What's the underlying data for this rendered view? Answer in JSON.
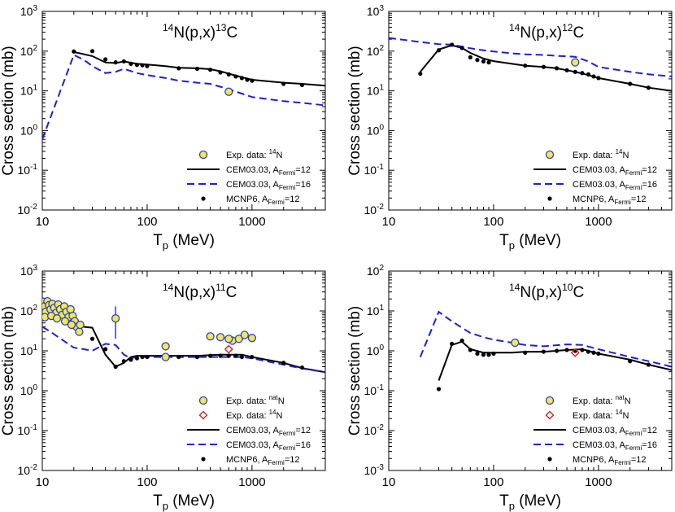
{
  "chart_data": [
    {
      "type": "line",
      "title_pre": "14",
      "title_mid": "N(p,x)",
      "title_sup2": "13",
      "title_post": "C",
      "xlabel_main": "T",
      "xlabel_sub": "p",
      "xlabel_unit": " (MeV)",
      "ylabel": "Cross section (mb)",
      "xscale": "log",
      "yscale": "log",
      "xlim": [
        10,
        5000
      ],
      "ylim": [
        0.01,
        1000
      ],
      "x_ticks": [
        {
          "v": 10,
          "label": "10"
        },
        {
          "v": 100,
          "label": "100"
        },
        {
          "v": 1000,
          "label": "1000"
        }
      ],
      "y_ticks": [
        {
          "v": 0.01,
          "base": "10",
          "exp": "-2"
        },
        {
          "v": 0.1,
          "base": "10",
          "exp": "-1"
        },
        {
          "v": 1,
          "base": "10",
          "exp": "0"
        },
        {
          "v": 10,
          "base": "10",
          "exp": "1"
        },
        {
          "v": 100,
          "base": "10",
          "exp": "2"
        },
        {
          "v": 1000,
          "base": "10",
          "exp": "3"
        }
      ],
      "legend_position": "bottom-right",
      "series": [
        {
          "name": "CEM03.03, A_Fermi=12",
          "kind": "solid",
          "x": [
            20,
            30,
            40,
            50,
            60,
            80,
            100,
            150,
            200,
            300,
            400,
            500,
            600,
            800,
            1000,
            2000,
            3000,
            5000
          ],
          "y": [
            95,
            75,
            52,
            50,
            55,
            48,
            46,
            42,
            38,
            37,
            35,
            31,
            27,
            22,
            19,
            16,
            15,
            13.5
          ]
        },
        {
          "name": "CEM03.03, A_Fermi=16",
          "kind": "dashed",
          "x": [
            10,
            20,
            25,
            30,
            40,
            50,
            60,
            80,
            100,
            150,
            200,
            300,
            400,
            600,
            800,
            1000,
            2000,
            3000,
            5000
          ],
          "y": [
            0.6,
            80,
            60,
            42,
            28,
            30,
            36,
            28,
            25,
            21,
            18,
            16,
            15,
            11,
            8.5,
            7,
            5.5,
            5,
            4.3
          ]
        },
        {
          "name": "MCNP6, A_Fermi=12",
          "kind": "dots",
          "x": [
            20,
            30,
            40,
            50,
            60,
            70,
            80,
            90,
            100,
            200,
            300,
            400,
            500,
            600,
            700,
            800,
            900,
            1000,
            2000,
            3000
          ],
          "y": [
            98,
            100,
            62,
            52,
            55,
            48,
            45,
            44,
            42,
            37,
            36,
            34,
            29,
            26,
            23,
            21,
            19,
            18,
            15,
            14
          ]
        }
      ],
      "exp": [
        {
          "x": 600,
          "y": 9.5
        }
      ],
      "legend": [
        {
          "kind": "circle",
          "text": "Exp. data: ",
          "sup": "14",
          "post": "N"
        },
        {
          "kind": "solid",
          "text": "CEM03.03, A",
          "sub": "Fermi",
          "post": "=12"
        },
        {
          "kind": "dashed",
          "text": "CEM03.03, A",
          "sub": "Fermi",
          "post": "=16"
        },
        {
          "kind": "dot",
          "text": "MCNP6, A",
          "sub": "Fermi",
          "post": "=12"
        }
      ]
    },
    {
      "type": "line",
      "title_pre": "14",
      "title_mid": "N(p,x)",
      "title_sup2": "12",
      "title_post": "C",
      "xlabel_main": "T",
      "xlabel_sub": "p",
      "xlabel_unit": " (MeV)",
      "ylabel": "Cross section (mb)",
      "xscale": "log",
      "yscale": "log",
      "xlim": [
        10,
        5000
      ],
      "ylim": [
        0.01,
        1000
      ],
      "x_ticks": [
        {
          "v": 10,
          "label": "10"
        },
        {
          "v": 100,
          "label": "100"
        },
        {
          "v": 1000,
          "label": "1000"
        }
      ],
      "y_ticks": [
        {
          "v": 0.01,
          "base": "10",
          "exp": "-2"
        },
        {
          "v": 0.1,
          "base": "10",
          "exp": "-1"
        },
        {
          "v": 1,
          "base": "10",
          "exp": "0"
        },
        {
          "v": 10,
          "base": "10",
          "exp": "1"
        },
        {
          "v": 100,
          "base": "10",
          "exp": "2"
        },
        {
          "v": 1000,
          "base": "10",
          "exp": "3"
        }
      ],
      "legend_position": "bottom-right",
      "series": [
        {
          "name": "CEM03.03, A_Fermi=12",
          "kind": "solid",
          "x": [
            20,
            30,
            40,
            50,
            60,
            80,
            100,
            150,
            200,
            300,
            400,
            500,
            600,
            800,
            1000,
            2000,
            3000,
            5000
          ],
          "y": [
            30,
            110,
            140,
            120,
            90,
            65,
            56,
            48,
            43,
            40,
            37,
            33,
            30,
            25,
            21,
            15,
            12,
            10
          ]
        },
        {
          "name": "CEM03.03, A_Fermi=16",
          "kind": "dashed",
          "x": [
            10,
            20,
            30,
            40,
            50,
            60,
            80,
            100,
            150,
            200,
            300,
            400,
            500,
            600,
            800,
            1000,
            2000,
            3000,
            5000
          ],
          "y": [
            215,
            170,
            150,
            145,
            130,
            118,
            105,
            98,
            88,
            83,
            80,
            76,
            74,
            72,
            55,
            40,
            30,
            26,
            23
          ]
        },
        {
          "name": "MCNP6, A_Fermi=12",
          "kind": "dots",
          "x": [
            20,
            30,
            40,
            50,
            60,
            70,
            80,
            90,
            200,
            300,
            400,
            500,
            600,
            700,
            800,
            900,
            1000,
            2000,
            3000
          ],
          "y": [
            27,
            105,
            145,
            120,
            70,
            60,
            55,
            52,
            43,
            40,
            37,
            33,
            30,
            28,
            26,
            23,
            21,
            15,
            12
          ]
        }
      ],
      "exp": [
        {
          "x": 600,
          "y": 52
        }
      ],
      "legend": [
        {
          "kind": "circle",
          "text": "Exp. data: ",
          "sup": "14",
          "post": "N"
        },
        {
          "kind": "solid",
          "text": "CEM03.03, A",
          "sub": "Fermi",
          "post": "=12"
        },
        {
          "kind": "dashed",
          "text": "CEM03.03, A",
          "sub": "Fermi",
          "post": "=16"
        },
        {
          "kind": "dot",
          "text": "MCNP6, A",
          "sub": "Fermi",
          "post": "=12"
        }
      ]
    },
    {
      "type": "line",
      "title_pre": "14",
      "title_mid": "N(p,x)",
      "title_sup2": "11",
      "title_post": "C",
      "xlabel_main": "T",
      "xlabel_sub": "p",
      "xlabel_unit": " (MeV)",
      "ylabel": "Cross section (mb)",
      "xscale": "log",
      "yscale": "log",
      "xlim": [
        10,
        5000
      ],
      "ylim": [
        0.01,
        1000
      ],
      "x_ticks": [
        {
          "v": 10,
          "label": "10"
        },
        {
          "v": 100,
          "label": "100"
        },
        {
          "v": 1000,
          "label": "1000"
        }
      ],
      "y_ticks": [
        {
          "v": 0.01,
          "base": "10",
          "exp": "-2"
        },
        {
          "v": 0.1,
          "base": "10",
          "exp": "-1"
        },
        {
          "v": 1,
          "base": "10",
          "exp": "0"
        },
        {
          "v": 10,
          "base": "10",
          "exp": "1"
        },
        {
          "v": 100,
          "base": "10",
          "exp": "2"
        },
        {
          "v": 1000,
          "base": "10",
          "exp": "3"
        }
      ],
      "legend_position": "bottom-right",
      "series": [
        {
          "name": "CEM03.03, A_Fermi=12",
          "kind": "solid",
          "x": [
            10,
            12,
            15,
            20,
            25,
            30,
            40,
            50,
            60,
            70,
            80,
            100,
            150,
            200,
            300,
            500,
            800,
            1000,
            2000,
            3000,
            5000
          ],
          "y": [
            95,
            110,
            95,
            60,
            40,
            38,
            8,
            4,
            5,
            7,
            7.5,
            7.5,
            7.5,
            7.5,
            7.5,
            8,
            8,
            7,
            5,
            3.7,
            2.9
          ]
        },
        {
          "name": "CEM03.03, A_Fermi=16",
          "kind": "dashed",
          "x": [
            10,
            12,
            15,
            20,
            25,
            30,
            40,
            50,
            60,
            70,
            80,
            100,
            150,
            200,
            300,
            500,
            800,
            1000,
            2000,
            3000,
            5000
          ],
          "y": [
            40,
            30,
            20,
            12,
            11,
            10,
            15,
            14,
            8,
            6.5,
            7,
            7,
            7,
            7,
            7,
            7,
            7,
            6.5,
            4.5,
            3.6,
            2.9
          ]
        },
        {
          "name": "MCNP6, A_Fermi=12",
          "kind": "dots",
          "x": [
            12,
            15,
            20,
            30,
            40,
            50,
            60,
            70,
            80,
            90,
            100,
            200,
            300,
            400,
            500,
            600,
            700,
            800,
            1000,
            2000,
            3000
          ],
          "y": [
            110,
            90,
            50,
            20,
            11,
            4,
            5.5,
            6,
            6.5,
            7,
            7,
            7,
            7,
            7.5,
            7.5,
            7.5,
            7.5,
            7,
            7,
            5,
            3.8
          ]
        }
      ],
      "exp": [
        {
          "x": 10.2,
          "y": 170
        },
        {
          "x": 10.5,
          "y": 130
        },
        {
          "x": 10.8,
          "y": 95
        },
        {
          "x": 11.2,
          "y": 175
        },
        {
          "x": 11.6,
          "y": 140
        },
        {
          "x": 12.0,
          "y": 110
        },
        {
          "x": 12.5,
          "y": 150
        },
        {
          "x": 13.0,
          "y": 120
        },
        {
          "x": 13.6,
          "y": 90
        },
        {
          "x": 14.2,
          "y": 145
        },
        {
          "x": 14.8,
          "y": 110
        },
        {
          "x": 15.5,
          "y": 80
        },
        {
          "x": 16.2,
          "y": 130
        },
        {
          "x": 17.0,
          "y": 95
        },
        {
          "x": 17.8,
          "y": 70
        },
        {
          "x": 18.6,
          "y": 110
        },
        {
          "x": 19.5,
          "y": 75
        },
        {
          "x": 20.4,
          "y": 55
        },
        {
          "x": 21.3,
          "y": 40
        },
        {
          "x": 22.5,
          "y": 30
        },
        {
          "x": 10.6,
          "y": 70
        },
        {
          "x": 12.2,
          "y": 75
        },
        {
          "x": 13.8,
          "y": 65
        },
        {
          "x": 16.5,
          "y": 55
        },
        {
          "x": 19.0,
          "y": 45
        },
        {
          "x": 23.0,
          "y": 45
        },
        {
          "x": 50,
          "y": 65,
          "err": [
            20,
            130
          ]
        },
        {
          "x": 150,
          "y": 13
        },
        {
          "x": 150,
          "y": 7
        },
        {
          "x": 400,
          "y": 23
        },
        {
          "x": 500,
          "y": 22
        },
        {
          "x": 650,
          "y": 18
        },
        {
          "x": 750,
          "y": 20
        },
        {
          "x": 850,
          "y": 25
        },
        {
          "x": 1000,
          "y": 21
        },
        {
          "x": 600,
          "y": 20
        }
      ],
      "exp2": [
        {
          "x": 600,
          "y": 11
        }
      ],
      "legend": [
        {
          "kind": "circle",
          "text": "Exp. data: ",
          "sup": "nat",
          "post": "N"
        },
        {
          "kind": "diamond",
          "text": "Exp. data: ",
          "sup": "14",
          "post": "N"
        },
        {
          "kind": "solid",
          "text": "CEM03.03, A",
          "sub": "Fermi",
          "post": "=12"
        },
        {
          "kind": "dashed",
          "text": "CEM03.03, A",
          "sub": "Fermi",
          "post": "=16"
        },
        {
          "kind": "dot",
          "text": "MCNP6, A",
          "sub": "Fermi",
          "post": "=12"
        }
      ]
    },
    {
      "type": "line",
      "title_pre": "14",
      "title_mid": "N(p,x)",
      "title_sup2": "10",
      "title_post": "C",
      "xlabel_main": "T",
      "xlabel_sub": "p",
      "xlabel_unit": " (MeV)",
      "ylabel": "Cross section (mb)",
      "xscale": "log",
      "yscale": "log",
      "xlim": [
        10,
        5000
      ],
      "ylim": [
        0.001,
        100
      ],
      "x_ticks": [
        {
          "v": 10,
          "label": "10"
        },
        {
          "v": 100,
          "label": "100"
        },
        {
          "v": 1000,
          "label": "1000"
        }
      ],
      "y_ticks": [
        {
          "v": 0.001,
          "base": "10",
          "exp": "-3"
        },
        {
          "v": 0.01,
          "base": "10",
          "exp": "-2"
        },
        {
          "v": 0.1,
          "base": "10",
          "exp": "-1"
        },
        {
          "v": 1,
          "base": "10",
          "exp": "0"
        },
        {
          "v": 10,
          "base": "10",
          "exp": "1"
        },
        {
          "v": 100,
          "base": "10",
          "exp": "2"
        }
      ],
      "legend_position": "bottom-right",
      "series": [
        {
          "name": "CEM03.03, A_Fermi=12",
          "kind": "solid",
          "x": [
            30,
            40,
            50,
            60,
            80,
            100,
            150,
            200,
            300,
            500,
            700,
            1000,
            2000,
            3000,
            5000
          ],
          "y": [
            0.18,
            1.4,
            1.7,
            1.1,
            0.9,
            0.9,
            0.9,
            0.95,
            0.95,
            1.05,
            1.1,
            0.85,
            0.6,
            0.45,
            0.33
          ]
        },
        {
          "name": "CEM03.03, A_Fermi=16",
          "kind": "dashed",
          "x": [
            20,
            30,
            40,
            50,
            60,
            80,
            100,
            150,
            200,
            300,
            500,
            700,
            1000,
            2000,
            3000,
            5000
          ],
          "y": [
            0.7,
            9.5,
            5.5,
            3.8,
            2.8,
            2.2,
            1.9,
            1.6,
            1.4,
            1.3,
            1.45,
            1.4,
            1.1,
            0.7,
            0.55,
            0.4
          ]
        },
        {
          "name": "MCNP6, A_Fermi=12",
          "kind": "dots",
          "x": [
            30,
            40,
            50,
            60,
            70,
            80,
            90,
            100,
            200,
            300,
            400,
            500,
            600,
            700,
            800,
            900,
            1000,
            2000,
            3000
          ],
          "y": [
            0.11,
            1.5,
            1.8,
            1.05,
            0.85,
            0.8,
            0.8,
            0.85,
            0.9,
            0.95,
            1.0,
            1.05,
            1.0,
            1.05,
            0.95,
            0.9,
            0.85,
            0.55,
            0.45
          ]
        }
      ],
      "exp": [
        {
          "x": 160,
          "y": 1.6
        }
      ],
      "exp2": [
        {
          "x": 600,
          "y": 0.9
        }
      ],
      "legend": [
        {
          "kind": "circle",
          "text": "Exp. data: ",
          "sup": "nat",
          "post": "N"
        },
        {
          "kind": "diamond",
          "text": "Exp. data: ",
          "sup": "14",
          "post": "N"
        },
        {
          "kind": "solid",
          "text": "CEM03.03, A",
          "sub": "Fermi",
          "post": "=12"
        },
        {
          "kind": "dashed",
          "text": "CEM03.03, A",
          "sub": "Fermi",
          "post": "=16"
        },
        {
          "kind": "dot",
          "text": "MCNP6, A",
          "sub": "Fermi",
          "post": "=12"
        }
      ]
    }
  ],
  "colors": {
    "solid_line": "#000000",
    "dashed_line": "#1f1fd6",
    "exp_fill": "#f2e94e",
    "exp_stroke": "#2a3fcf",
    "exp2_stroke": "#d62020",
    "mcnp_dot": "#000000"
  }
}
